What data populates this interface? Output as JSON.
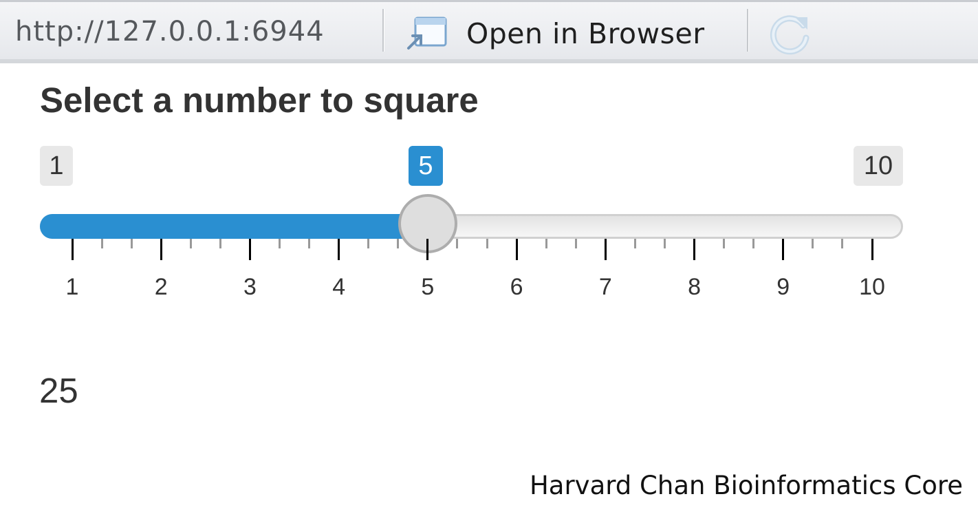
{
  "toolbar": {
    "url": "http://127.0.0.1:6944",
    "open_label": "Open in Browser",
    "open_icon": "open-window-icon",
    "refresh_icon": "refresh-icon"
  },
  "app": {
    "title": "Select a number to square",
    "slider": {
      "min": 1,
      "max": 10,
      "value": 5,
      "min_label": "1",
      "max_label": "10",
      "value_label": "5",
      "tick_labels": [
        "1",
        "2",
        "3",
        "4",
        "5",
        "6",
        "7",
        "8",
        "9",
        "10"
      ],
      "accent_color": "#2a8fd1"
    },
    "result": "25"
  },
  "footer": {
    "credit": "Harvard Chan Bioinformatics Core"
  }
}
